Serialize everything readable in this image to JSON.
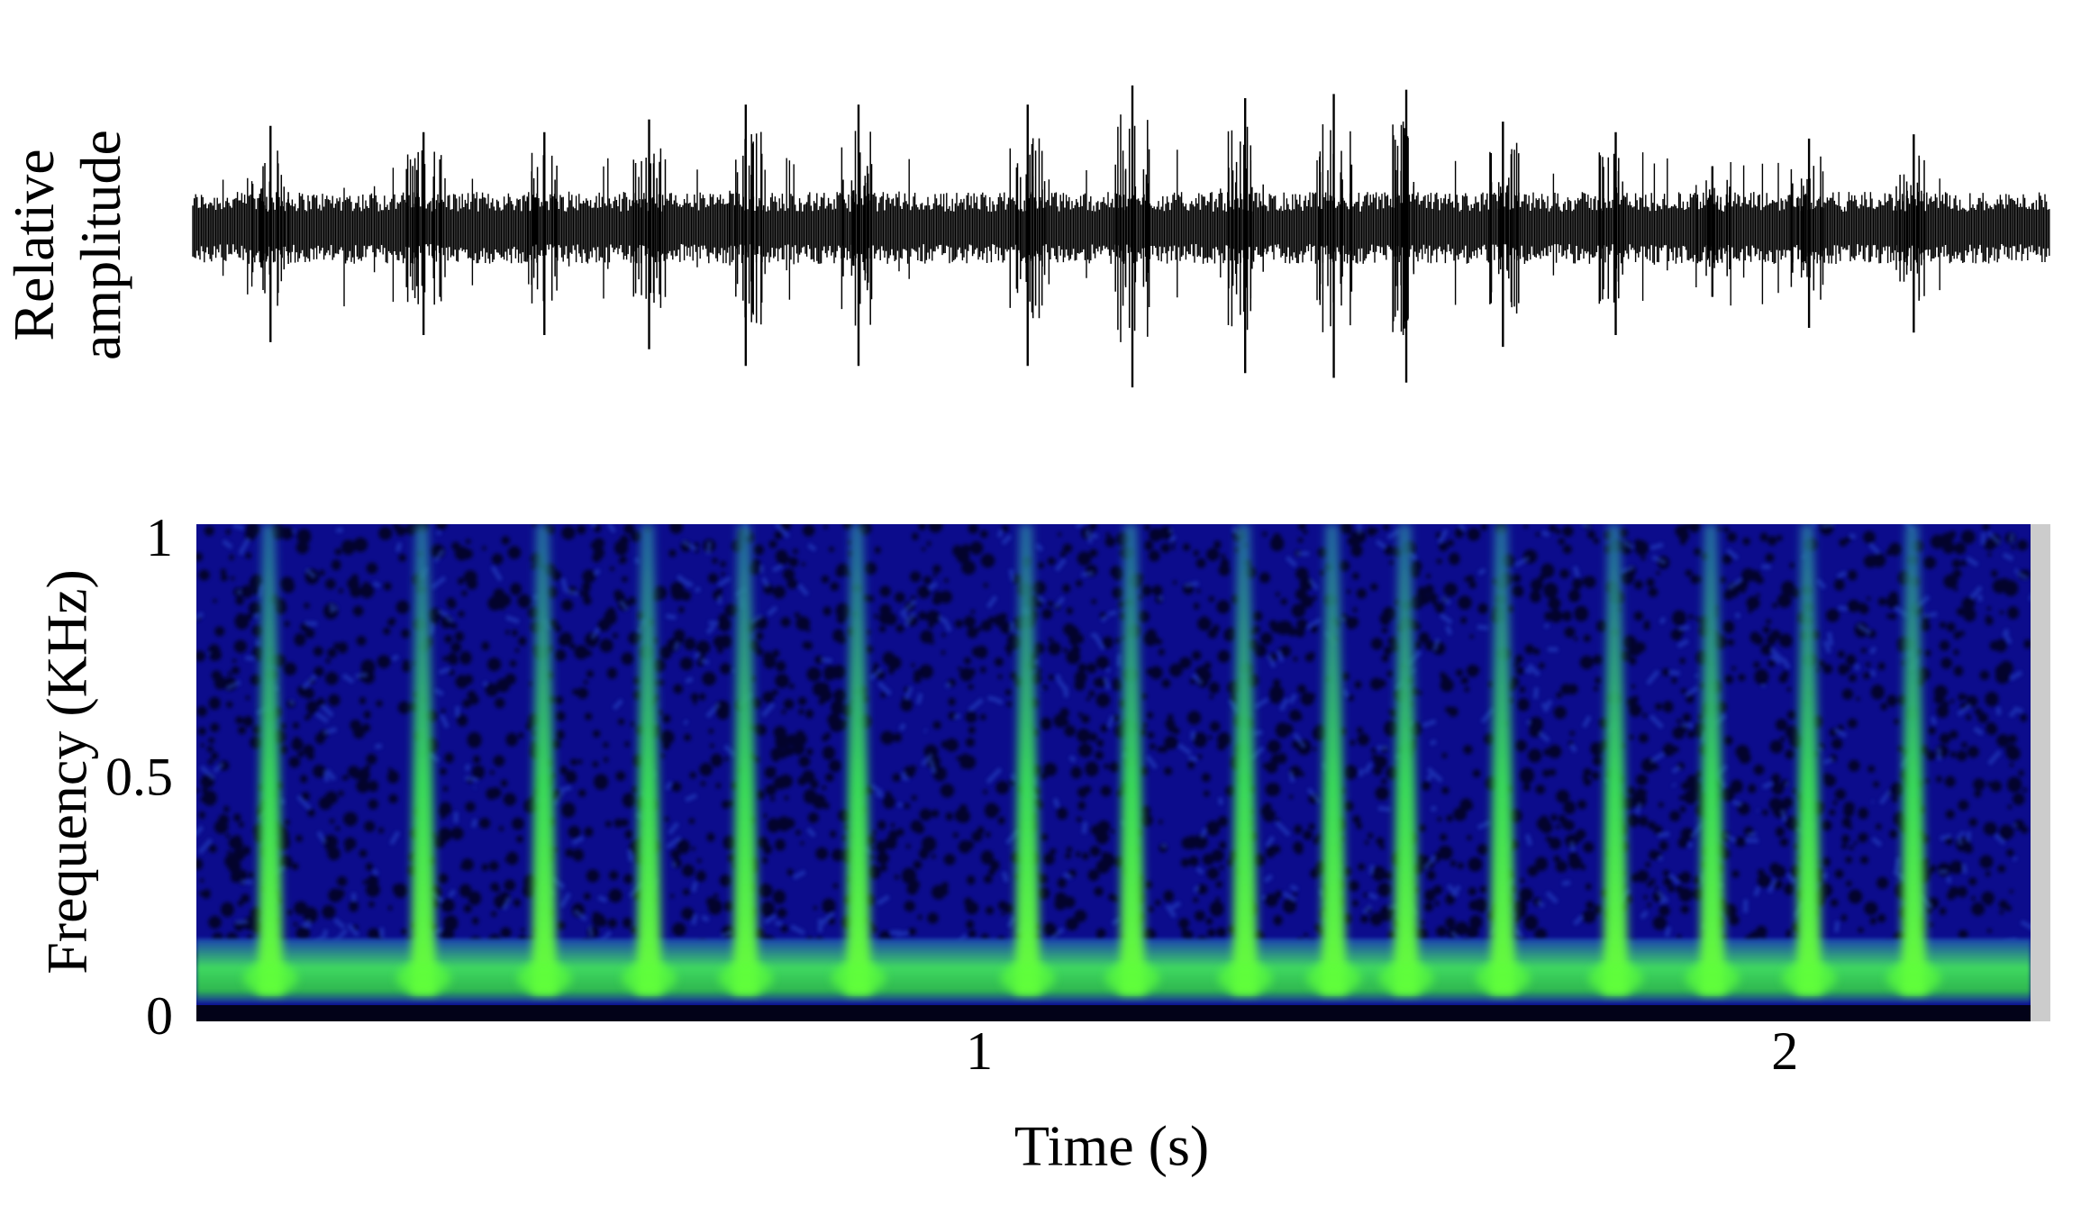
{
  "chart_data": [
    {
      "type": "waveform",
      "y_label": "Relative amplitude",
      "x": [
        0.12,
        0.31,
        0.46,
        0.59,
        0.71,
        0.85,
        1.06,
        1.19,
        1.33,
        1.44,
        1.53,
        1.65,
        1.79,
        1.91,
        2.03,
        2.16
      ],
      "values": [
        0.48,
        0.45,
        0.45,
        0.51,
        0.58,
        0.58,
        0.58,
        0.67,
        0.61,
        0.63,
        0.65,
        0.5,
        0.45,
        0.29,
        0.42,
        0.44
      ],
      "xlim": [
        0.028,
        2.305
      ],
      "ylim": [
        -1,
        1
      ],
      "color": "#000000"
    },
    {
      "type": "spectrogram",
      "x_label": "Time (s)",
      "y_label": "Frequency (KHz)",
      "x": [
        0.12,
        0.31,
        0.46,
        0.59,
        0.71,
        0.85,
        1.06,
        1.19,
        1.33,
        1.44,
        1.53,
        1.65,
        1.79,
        1.91,
        2.03,
        2.16
      ],
      "xlim": [
        0.028,
        2.305
      ],
      "xticks": [
        1,
        2
      ],
      "ylim": [
        0,
        1.04
      ],
      "yticks": [
        0,
        0.5,
        1
      ]
    }
  ]
}
